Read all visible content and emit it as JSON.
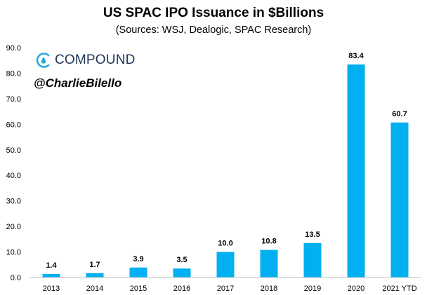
{
  "chart_data": {
    "type": "bar",
    "title": "US SPAC IPO Issuance in $Billions",
    "subtitle": "(Sources: WSJ, Dealogic, SPAC Research)",
    "categories": [
      "2013",
      "2014",
      "2015",
      "2016",
      "2017",
      "2018",
      "2019",
      "2020",
      "2021 YTD"
    ],
    "values": [
      1.4,
      1.7,
      3.9,
      3.5,
      10.0,
      10.8,
      13.5,
      83.4,
      60.7
    ],
    "value_labels": [
      "1.4",
      "1.7",
      "3.9",
      "3.5",
      "10.0",
      "10.8",
      "13.5",
      "83.4",
      "60.7"
    ],
    "yticks": [
      "0.0",
      "10.0",
      "20.0",
      "30.0",
      "40.0",
      "50.0",
      "60.0",
      "70.0",
      "80.0",
      "90.0"
    ],
    "ylim": [
      0,
      90
    ],
    "xlabel": "",
    "ylabel": "",
    "grid": false,
    "bar_color": "#00b0f0"
  },
  "branding": {
    "logo_text": "COMPOUND",
    "handle": "@CharlieBilello",
    "logo_color": "#29a8e0"
  }
}
